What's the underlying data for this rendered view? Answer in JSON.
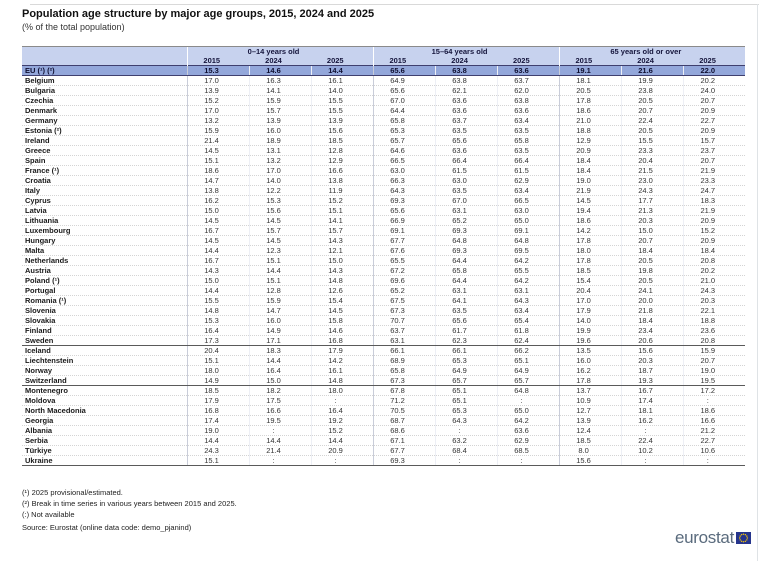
{
  "page": {
    "title": "Population age structure by major age groups, 2015, 2024 and 2025",
    "subtitle": "(% of the total population)"
  },
  "chart_data": {
    "type": "table",
    "title": "Population age structure by major age groups, 2015, 2024 and 2025",
    "subtitle": "(% of the total population)",
    "unit": "% of the total population",
    "column_groups": [
      "0–14 years old",
      "15–64 years old",
      "65 years old or over"
    ],
    "years": [
      "2015",
      "2024",
      "2025"
    ],
    "not_available_symbol": ":",
    "rows": [
      {
        "label": "EU (¹) (²)",
        "eu": true,
        "values": [
          "15.3",
          "14.6",
          "14.4",
          "65.6",
          "63.8",
          "63.6",
          "19.1",
          "21.6",
          "22.0"
        ]
      },
      {
        "label": "Belgium",
        "values": [
          "17.0",
          "16.3",
          "16.1",
          "64.9",
          "63.8",
          "63.7",
          "18.1",
          "19.9",
          "20.2"
        ]
      },
      {
        "label": "Bulgaria",
        "values": [
          "13.9",
          "14.1",
          "14.0",
          "65.6",
          "62.1",
          "62.0",
          "20.5",
          "23.8",
          "24.0"
        ]
      },
      {
        "label": "Czechia",
        "values": [
          "15.2",
          "15.9",
          "15.5",
          "67.0",
          "63.6",
          "63.8",
          "17.8",
          "20.5",
          "20.7"
        ]
      },
      {
        "label": "Denmark",
        "values": [
          "17.0",
          "15.7",
          "15.5",
          "64.4",
          "63.6",
          "63.6",
          "18.6",
          "20.7",
          "20.9"
        ]
      },
      {
        "label": "Germany",
        "values": [
          "13.2",
          "13.9",
          "13.9",
          "65.8",
          "63.7",
          "63.4",
          "21.0",
          "22.4",
          "22.7"
        ]
      },
      {
        "label": "Estonia (²)",
        "values": [
          "15.9",
          "16.0",
          "15.6",
          "65.3",
          "63.5",
          "63.5",
          "18.8",
          "20.5",
          "20.9"
        ]
      },
      {
        "label": "Ireland",
        "values": [
          "21.4",
          "18.9",
          "18.5",
          "65.7",
          "65.6",
          "65.8",
          "12.9",
          "15.5",
          "15.7"
        ]
      },
      {
        "label": "Greece",
        "values": [
          "14.5",
          "13.1",
          "12.8",
          "64.6",
          "63.6",
          "63.5",
          "20.9",
          "23.3",
          "23.7"
        ]
      },
      {
        "label": "Spain",
        "values": [
          "15.1",
          "13.2",
          "12.9",
          "66.5",
          "66.4",
          "66.4",
          "18.4",
          "20.4",
          "20.7"
        ]
      },
      {
        "label": "France (¹)",
        "values": [
          "18.6",
          "17.0",
          "16.6",
          "63.0",
          "61.5",
          "61.5",
          "18.4",
          "21.5",
          "21.9"
        ]
      },
      {
        "label": "Croatia",
        "values": [
          "14.7",
          "14.0",
          "13.8",
          "66.3",
          "63.0",
          "62.9",
          "19.0",
          "23.0",
          "23.3"
        ]
      },
      {
        "label": "Italy",
        "values": [
          "13.8",
          "12.2",
          "11.9",
          "64.3",
          "63.5",
          "63.4",
          "21.9",
          "24.3",
          "24.7"
        ]
      },
      {
        "label": "Cyprus",
        "values": [
          "16.2",
          "15.3",
          "15.2",
          "69.3",
          "67.0",
          "66.5",
          "14.5",
          "17.7",
          "18.3"
        ]
      },
      {
        "label": "Latvia",
        "values": [
          "15.0",
          "15.6",
          "15.1",
          "65.6",
          "63.1",
          "63.0",
          "19.4",
          "21.3",
          "21.9"
        ]
      },
      {
        "label": "Lithuania",
        "values": [
          "14.5",
          "14.5",
          "14.1",
          "66.9",
          "65.2",
          "65.0",
          "18.6",
          "20.3",
          "20.9"
        ]
      },
      {
        "label": "Luxembourg",
        "values": [
          "16.7",
          "15.7",
          "15.7",
          "69.1",
          "69.3",
          "69.1",
          "14.2",
          "15.0",
          "15.2"
        ]
      },
      {
        "label": "Hungary",
        "values": [
          "14.5",
          "14.5",
          "14.3",
          "67.7",
          "64.8",
          "64.8",
          "17.8",
          "20.7",
          "20.9"
        ]
      },
      {
        "label": "Malta",
        "values": [
          "14.4",
          "12.3",
          "12.1",
          "67.6",
          "69.3",
          "69.5",
          "18.0",
          "18.4",
          "18.4"
        ]
      },
      {
        "label": "Netherlands",
        "values": [
          "16.7",
          "15.1",
          "15.0",
          "65.5",
          "64.4",
          "64.2",
          "17.8",
          "20.5",
          "20.8"
        ]
      },
      {
        "label": "Austria",
        "values": [
          "14.3",
          "14.4",
          "14.3",
          "67.2",
          "65.8",
          "65.5",
          "18.5",
          "19.8",
          "20.2"
        ]
      },
      {
        "label": "Poland (¹)",
        "values": [
          "15.0",
          "15.1",
          "14.8",
          "69.6",
          "64.4",
          "64.2",
          "15.4",
          "20.5",
          "21.0"
        ]
      },
      {
        "label": "Portugal",
        "values": [
          "14.4",
          "12.8",
          "12.6",
          "65.2",
          "63.1",
          "63.1",
          "20.4",
          "24.1",
          "24.3"
        ]
      },
      {
        "label": "Romania (¹)",
        "values": [
          "15.5",
          "15.9",
          "15.4",
          "67.5",
          "64.1",
          "64.3",
          "17.0",
          "20.0",
          "20.3"
        ]
      },
      {
        "label": "Slovenia",
        "values": [
          "14.8",
          "14.7",
          "14.5",
          "67.3",
          "63.5",
          "63.4",
          "17.9",
          "21.8",
          "22.1"
        ]
      },
      {
        "label": "Slovakia",
        "values": [
          "15.3",
          "16.0",
          "15.8",
          "70.7",
          "65.6",
          "65.4",
          "14.0",
          "18.4",
          "18.8"
        ]
      },
      {
        "label": "Finland",
        "values": [
          "16.4",
          "14.9",
          "14.6",
          "63.7",
          "61.7",
          "61.8",
          "19.9",
          "23.4",
          "23.6"
        ]
      },
      {
        "label": "Sweden",
        "section_end": true,
        "values": [
          "17.3",
          "17.1",
          "16.8",
          "63.1",
          "62.3",
          "62.4",
          "19.6",
          "20.6",
          "20.8"
        ]
      },
      {
        "label": "Iceland",
        "values": [
          "20.4",
          "18.3",
          "17.9",
          "66.1",
          "66.1",
          "66.2",
          "13.5",
          "15.6",
          "15.9"
        ]
      },
      {
        "label": "Liechtenstein",
        "values": [
          "15.1",
          "14.4",
          "14.2",
          "68.9",
          "65.3",
          "65.1",
          "16.0",
          "20.3",
          "20.7"
        ]
      },
      {
        "label": "Norway",
        "values": [
          "18.0",
          "16.4",
          "16.1",
          "65.8",
          "64.9",
          "64.9",
          "16.2",
          "18.7",
          "19.0"
        ]
      },
      {
        "label": "Switzerland",
        "section_end": true,
        "values": [
          "14.9",
          "15.0",
          "14.8",
          "67.3",
          "65.7",
          "65.7",
          "17.8",
          "19.3",
          "19.5"
        ]
      },
      {
        "label": "Montenegro",
        "values": [
          "18.5",
          "18.2",
          "18.0",
          "67.8",
          "65.1",
          "64.8",
          "13.7",
          "16.7",
          "17.2"
        ]
      },
      {
        "label": "Moldova",
        "values": [
          "17.9",
          "17.5",
          ":",
          "71.2",
          "65.1",
          ":",
          "10.9",
          "17.4",
          ":"
        ]
      },
      {
        "label": "North Macedonia",
        "values": [
          "16.8",
          "16.6",
          "16.4",
          "70.5",
          "65.3",
          "65.0",
          "12.7",
          "18.1",
          "18.6"
        ]
      },
      {
        "label": "Georgia",
        "values": [
          "17.4",
          "19.5",
          "19.2",
          "68.7",
          "64.3",
          "64.2",
          "13.9",
          "16.2",
          "16.6"
        ]
      },
      {
        "label": "Albania",
        "values": [
          "19.0",
          ":",
          "15.2",
          "68.6",
          ":",
          "63.6",
          "12.4",
          ":",
          "21.2"
        ]
      },
      {
        "label": "Serbia",
        "values": [
          "14.4",
          "14.4",
          "14.4",
          "67.1",
          "63.2",
          "62.9",
          "18.5",
          "22.4",
          "22.7"
        ]
      },
      {
        "label": "Türkiye",
        "values": [
          "24.3",
          "21.4",
          "20.9",
          "67.7",
          "68.4",
          "68.5",
          "8.0",
          "10.2",
          "10.6"
        ]
      },
      {
        "label": "Ukraine",
        "values": [
          "15.1",
          ":",
          ":",
          "69.3",
          ":",
          ":",
          "15.6",
          ":",
          ":"
        ]
      }
    ]
  },
  "footnotes": [
    "(¹) 2025 provisional/estimated.",
    "(²) Break in time series in various years between 2015 and 2025.",
    "(:) Not available"
  ],
  "source": "Source: Eurostat (online data code: demo_pjanind)",
  "logo": {
    "text": "eurostat"
  },
  "colors": {
    "header_bg": "#c7d2ee",
    "eu_row_bg": "#93a7da",
    "logo_text": "#5a6b7d",
    "eu_flag_blue": "#26358c",
    "eu_flag_stars": "#ffcc00"
  }
}
